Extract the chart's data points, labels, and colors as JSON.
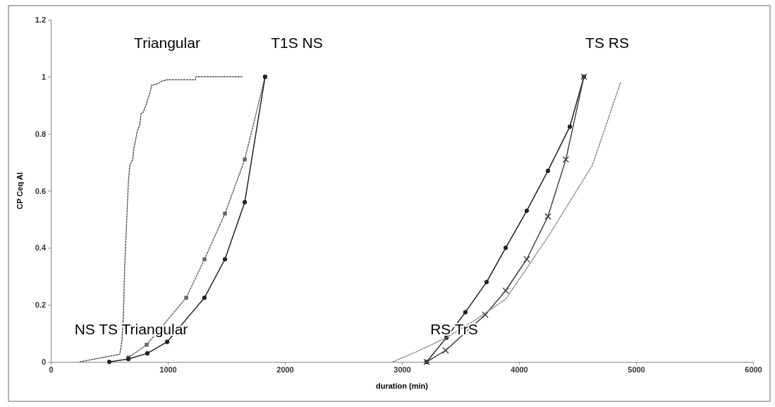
{
  "chart_data": {
    "type": "line",
    "xlabel": "duration (min)",
    "ylabel": "CP Ceq Al",
    "xlim": [
      0,
      6000
    ],
    "xticks": [
      0,
      1000,
      2000,
      3000,
      4000,
      5000,
      6000
    ],
    "ylim": [
      0,
      1.2
    ],
    "yticks": [
      0,
      0.2,
      0.4,
      0.6,
      0.8,
      1,
      1.2
    ],
    "grid": false,
    "series": [
      {
        "color": "#555555",
        "line_style": "dotted",
        "marker": "none",
        "x": [
          250,
          590,
          608,
          620,
          632,
          650,
          663,
          675,
          700,
          710,
          728,
          740,
          760,
          771,
          789,
          813,
          831,
          849,
          861,
          910,
          952,
          1000,
          1235,
          1241,
          1633
        ],
        "values": [
          0,
          0.027,
          0.074,
          0.16,
          0.34,
          0.51,
          0.63,
          0.69,
          0.71,
          0.75,
          0.785,
          0.81,
          0.83,
          0.87,
          0.875,
          0.9,
          0.925,
          0.945,
          0.97,
          0.975,
          0.985,
          0.99,
          0.99,
          1,
          1
        ]
      },
      {
        "color": "#666666",
        "line_style": "dotted",
        "marker": "square",
        "x": [
          663,
          819,
          1157,
          1313,
          1488,
          1657,
          1831
        ],
        "values": [
          0.015,
          0.06,
          0.225,
          0.36,
          0.52,
          0.71,
          1
        ]
      },
      {
        "color": "#222222",
        "line_style": "solid",
        "marker": "circle",
        "x": [
          500,
          663,
          825,
          994,
          1313,
          1488,
          1657,
          1831
        ],
        "values": [
          0,
          0.01,
          0.03,
          0.07,
          0.225,
          0.36,
          0.56,
          1
        ]
      },
      {
        "color": "#222222",
        "line_style": "solid",
        "marker": "circle",
        "x": [
          3211,
          3380,
          3542,
          3723,
          3886,
          4066,
          4247,
          4434,
          4554
        ],
        "values": [
          0,
          0.085,
          0.174,
          0.28,
          0.4,
          0.53,
          0.67,
          0.825,
          1
        ]
      },
      {
        "color": "#444444",
        "line_style": "solid",
        "marker": "cross",
        "x": [
          3211,
          3373,
          3711,
          3886,
          4066,
          4247,
          4400,
          4554
        ],
        "values": [
          0,
          0.04,
          0.165,
          0.25,
          0.36,
          0.51,
          0.71,
          1
        ]
      },
      {
        "color": "#888888",
        "line_style": "dotted",
        "marker": "none",
        "x": [
          2922,
          3133,
          3380,
          3620,
          3886,
          4250,
          4627,
          4867
        ],
        "values": [
          0,
          0.037,
          0.085,
          0.145,
          0.22,
          0.44,
          0.69,
          0.98
        ]
      }
    ],
    "annotations": [
      "Triangular",
      "T1S NS",
      "TS RS",
      "NS TS Triangular",
      "RS TrS"
    ]
  }
}
